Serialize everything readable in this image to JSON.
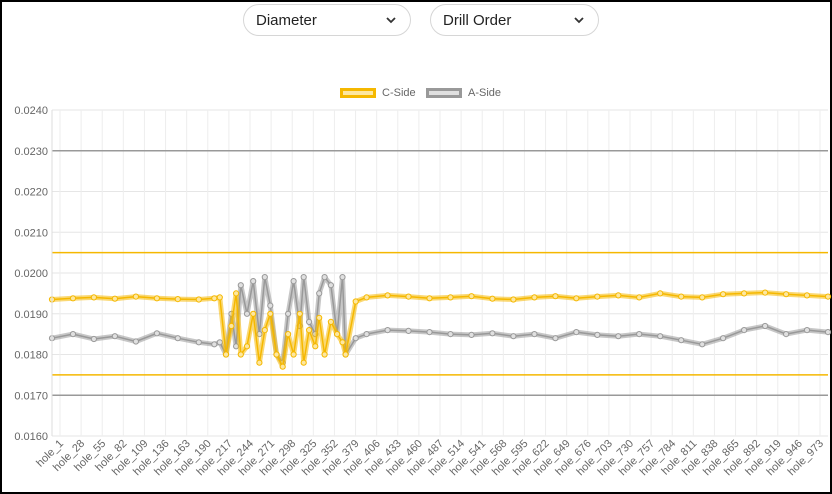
{
  "controls": {
    "metric_select": {
      "value": "Diameter"
    },
    "order_select": {
      "value": "Drill Order"
    }
  },
  "chart_data": {
    "type": "line",
    "xlabel": "",
    "ylabel": "",
    "ylim": [
      0.016,
      0.024
    ],
    "y_ticks": [
      "0.0160",
      "0.0170",
      "0.0180",
      "0.0190",
      "0.0200",
      "0.0210",
      "0.0220",
      "0.0230",
      "0.0240"
    ],
    "x_tick_labels": [
      "hole_1",
      "hole_28",
      "hole_55",
      "hole_82",
      "hole_109",
      "hole_136",
      "hole_163",
      "hole_190",
      "hole_217",
      "hole_244",
      "hole_271",
      "hole_298",
      "hole_325",
      "hole_352",
      "hole_379",
      "hole_406",
      "hole_433",
      "hole_460",
      "hole_487",
      "hole_514",
      "hole_541",
      "hole_568",
      "hole_595",
      "hole_622",
      "hole_649",
      "hole_676",
      "hole_703",
      "hole_730",
      "hole_757",
      "hole_784",
      "hole_811",
      "hole_838",
      "hole_865",
      "hole_892",
      "hole_919",
      "hole_946",
      "hole_973"
    ],
    "x_range": [
      1,
      1000
    ],
    "legend_position": "top-center",
    "grid": true,
    "series": [
      {
        "name": "C-Side",
        "color": "#f5b800",
        "fill": "#fde7a0",
        "x": [
          1,
          28,
          55,
          82,
          109,
          136,
          163,
          190,
          210,
          217,
          225,
          232,
          238,
          244,
          252,
          260,
          268,
          275,
          282,
          290,
          298,
          305,
          312,
          320,
          325,
          332,
          340,
          345,
          352,
          360,
          368,
          375,
          379,
          392,
          406,
          433,
          460,
          487,
          514,
          541,
          568,
          595,
          622,
          649,
          676,
          703,
          730,
          757,
          784,
          811,
          838,
          865,
          892,
          919,
          946,
          973,
          1000
        ],
        "values": [
          0.01935,
          0.01938,
          0.0194,
          0.01937,
          0.01942,
          0.01938,
          0.01936,
          0.01935,
          0.01938,
          0.0194,
          0.018,
          0.0187,
          0.0195,
          0.018,
          0.0182,
          0.019,
          0.0178,
          0.0186,
          0.019,
          0.018,
          0.0177,
          0.0185,
          0.018,
          0.019,
          0.0178,
          0.0186,
          0.0182,
          0.0189,
          0.018,
          0.0188,
          0.0185,
          0.0183,
          0.018,
          0.0193,
          0.0194,
          0.01945,
          0.01942,
          0.01938,
          0.0194,
          0.01943,
          0.01937,
          0.01935,
          0.0194,
          0.01943,
          0.01938,
          0.01942,
          0.01945,
          0.0194,
          0.0195,
          0.01942,
          0.0194,
          0.01948,
          0.0195,
          0.01952,
          0.01948,
          0.01945,
          0.01942
        ]
      },
      {
        "name": "A-Side",
        "color": "#999999",
        "fill": "#e0e0e0",
        "x": [
          1,
          28,
          55,
          82,
          109,
          136,
          163,
          190,
          210,
          217,
          225,
          232,
          238,
          244,
          252,
          260,
          268,
          275,
          282,
          290,
          298,
          305,
          312,
          320,
          325,
          332,
          340,
          345,
          352,
          360,
          368,
          375,
          379,
          392,
          406,
          433,
          460,
          487,
          514,
          541,
          568,
          595,
          622,
          649,
          676,
          703,
          730,
          757,
          784,
          811,
          838,
          865,
          892,
          919,
          946,
          973,
          1000
        ],
        "values": [
          0.0184,
          0.0185,
          0.01838,
          0.01845,
          0.01832,
          0.01852,
          0.0184,
          0.0183,
          0.01825,
          0.0183,
          0.018,
          0.019,
          0.0182,
          0.0197,
          0.019,
          0.0198,
          0.0185,
          0.0199,
          0.0192,
          0.018,
          0.0178,
          0.019,
          0.0198,
          0.0187,
          0.0199,
          0.0188,
          0.0185,
          0.0195,
          0.0199,
          0.0197,
          0.0185,
          0.0199,
          0.018,
          0.0184,
          0.0185,
          0.0186,
          0.01858,
          0.01855,
          0.0185,
          0.01848,
          0.01852,
          0.01845,
          0.0185,
          0.0184,
          0.01855,
          0.01848,
          0.01845,
          0.0185,
          0.01845,
          0.01835,
          0.01825,
          0.0184,
          0.0186,
          0.0187,
          0.0185,
          0.0186,
          0.01855
        ]
      }
    ],
    "reference_lines": [
      {
        "value": 0.0205,
        "color": "#f5b800"
      },
      {
        "value": 0.0175,
        "color": "#f5b800"
      },
      {
        "value": 0.023,
        "color": "#999999"
      },
      {
        "value": 0.017,
        "color": "#999999"
      }
    ]
  }
}
